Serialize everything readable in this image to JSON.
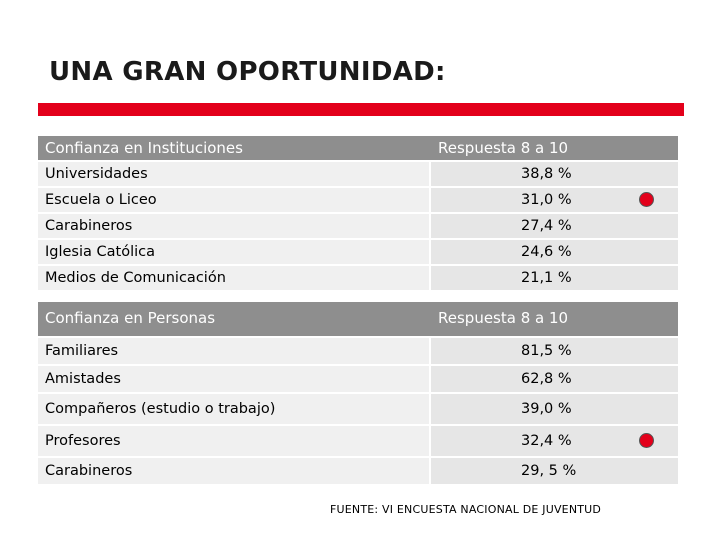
{
  "title": "UNA GRAN OPORTUNIDAD:",
  "colors": {
    "accent": "#e3001b",
    "header_bg": "#8e8e8e"
  },
  "table_instituciones": {
    "header": [
      "Confianza en Instituciones",
      "Respuesta 8 a 10"
    ],
    "rows": [
      [
        "Universidades",
        "38,8 %"
      ],
      [
        "Escuela o Liceo",
        "31,0 %"
      ],
      [
        "Carabineros",
        "27,4 %"
      ],
      [
        "Iglesia Católica",
        "24,6 %"
      ],
      [
        "Medios de Comunicación",
        "21,1 %"
      ]
    ]
  },
  "table_personas": {
    "header": [
      "Confianza en Personas",
      "Respuesta 8 a 10"
    ],
    "rows": [
      [
        "Familiares",
        "81,5 %"
      ],
      [
        "Amistades",
        "62,8 %"
      ],
      [
        "Compañeros (estudio o trabajo)",
        "39,0 %"
      ],
      [
        "Profesores",
        "32,4 %"
      ],
      [
        "Carabineros",
        "29, 5 %"
      ]
    ]
  },
  "source": "FUENTE: VI ENCUESTA NACIONAL DE JUVENTUD"
}
